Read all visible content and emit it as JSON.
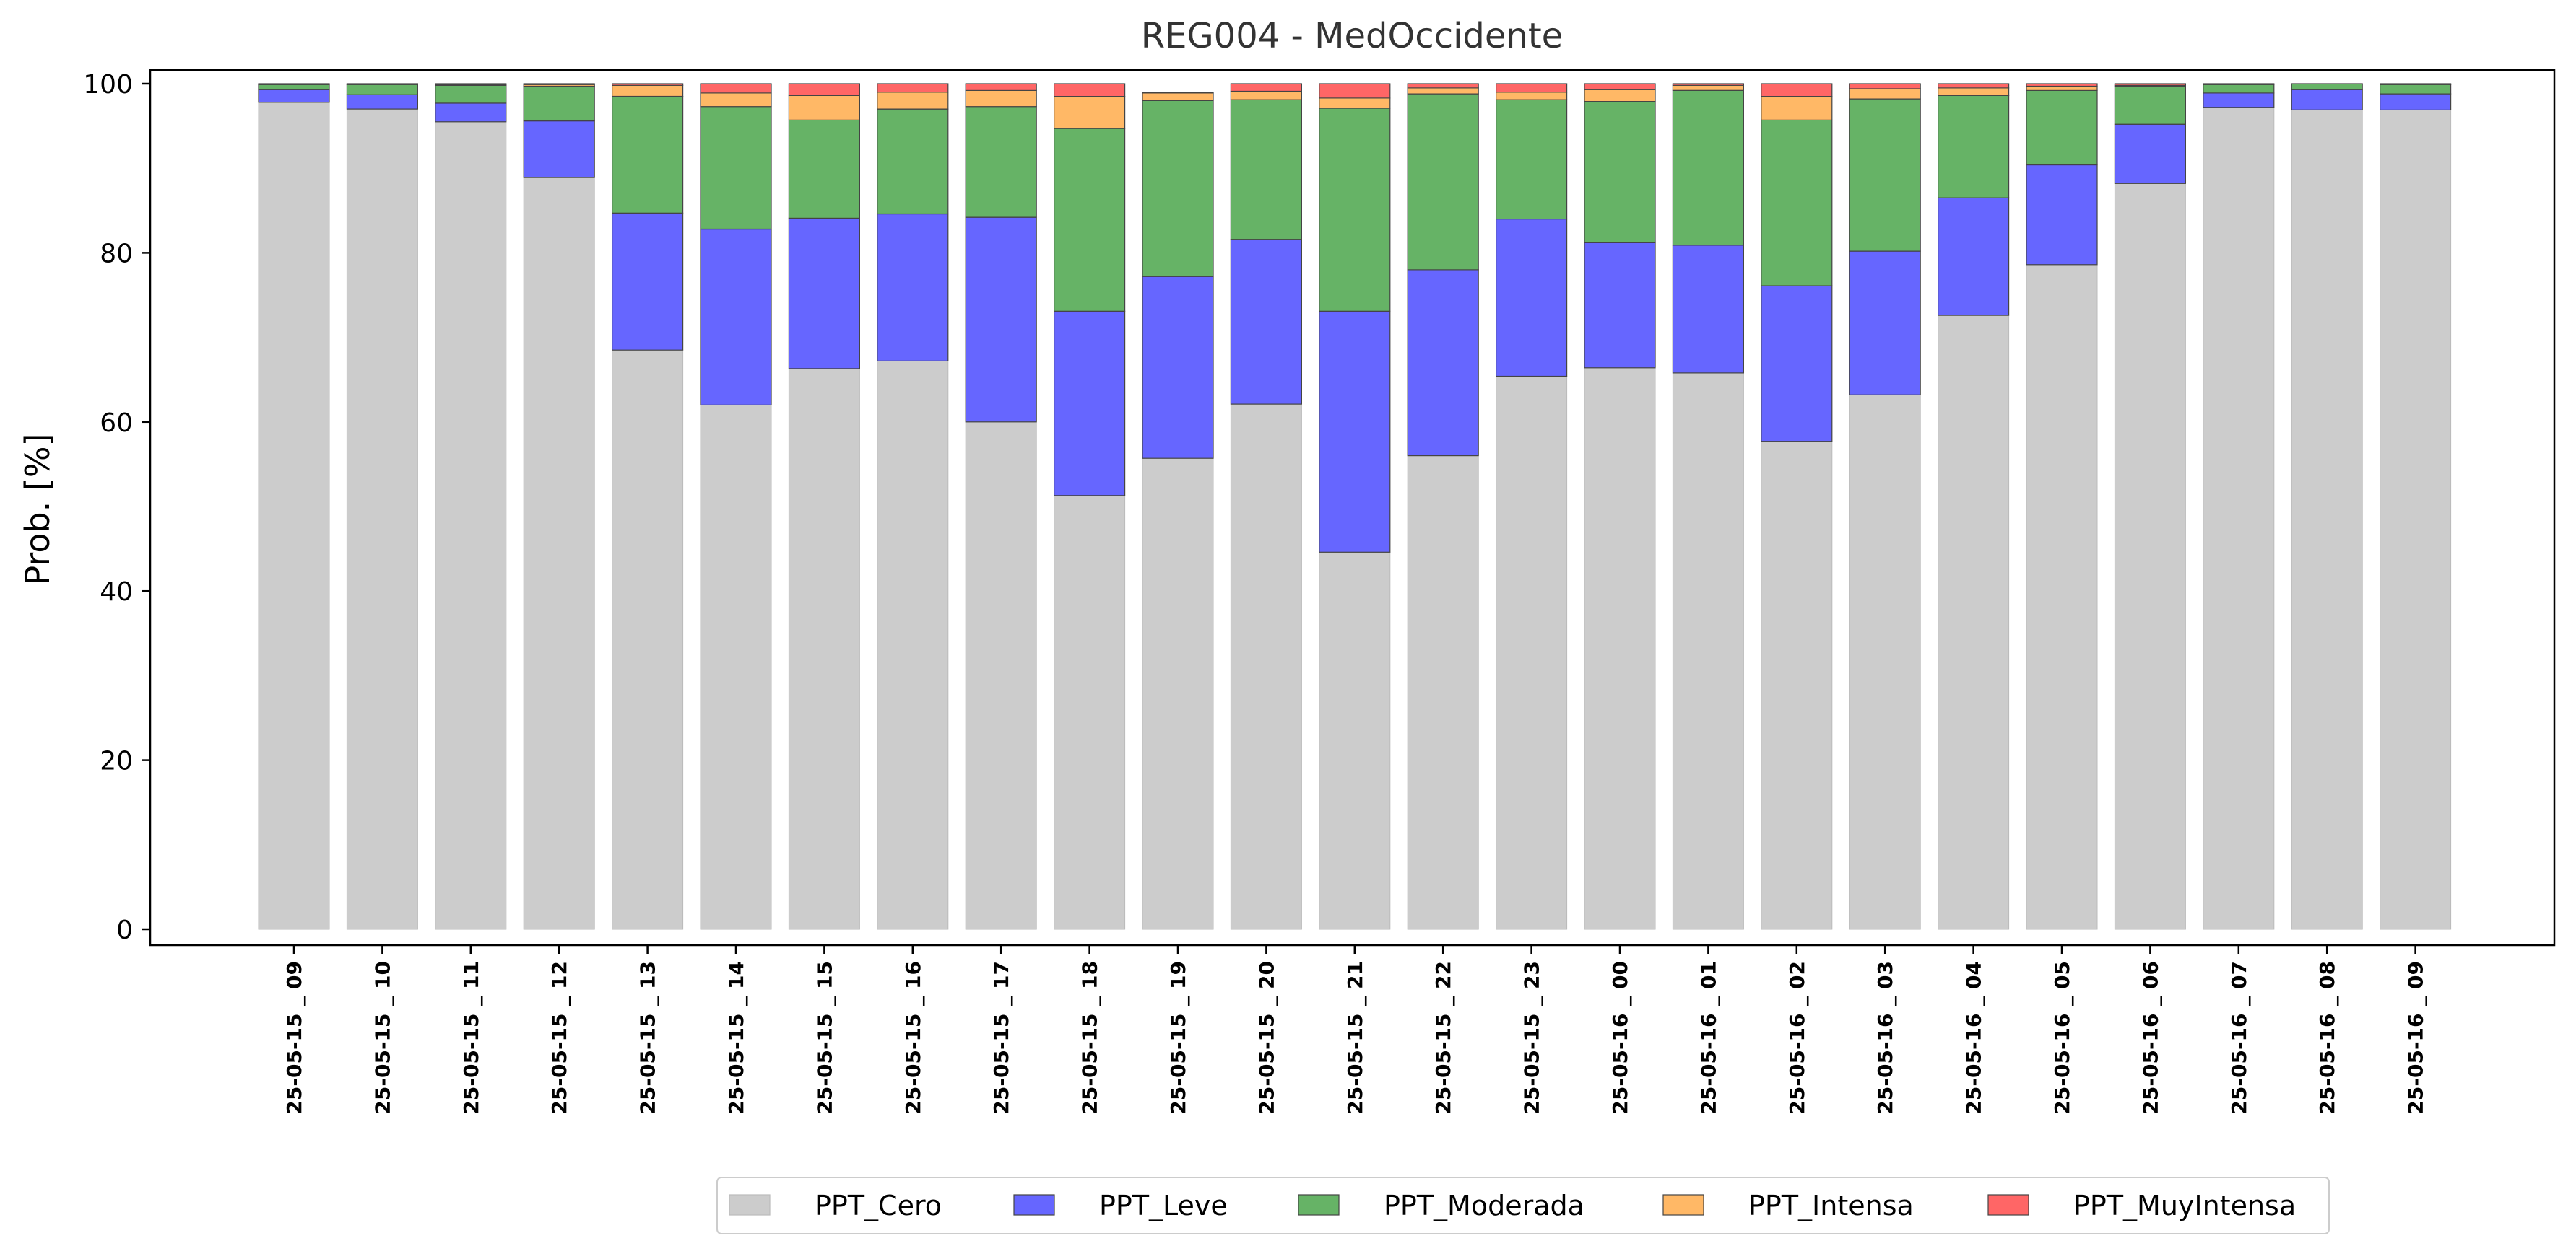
{
  "chart_data": {
    "type": "bar",
    "stacked": true,
    "title": "REG004 - MedOccidente",
    "xlabel": "",
    "ylabel": "Prob. [%]",
    "ylim": [
      0,
      102.5
    ],
    "yticks": [
      0,
      20,
      40,
      60,
      80,
      100
    ],
    "grid": false,
    "legend_position": "bottom-center",
    "categories": [
      "25-05-15 _ 09",
      "25-05-15 _ 10",
      "25-05-15 _ 11",
      "25-05-15 _ 12",
      "25-05-15 _ 13",
      "25-05-15 _ 14",
      "25-05-15 _ 15",
      "25-05-15 _ 16",
      "25-05-15 _ 17",
      "25-05-15 _ 18",
      "25-05-15 _ 19",
      "25-05-15 _ 20",
      "25-05-15 _ 21",
      "25-05-15 _ 22",
      "25-05-15 _ 23",
      "25-05-16 _ 00",
      "25-05-16 _ 01",
      "25-05-16 _ 02",
      "25-05-16 _ 03",
      "25-05-16 _ 04",
      "25-05-16 _ 05",
      "25-05-16 _ 06",
      "25-05-16 _ 07",
      "25-05-16 _ 08",
      "25-05-16 _ 09"
    ],
    "series": [
      {
        "name": "PPT_Cero",
        "color": "#cccccc",
        "values": [
          97.8,
          97.0,
          95.5,
          88.9,
          68.5,
          62.0,
          66.3,
          67.2,
          60.0,
          51.3,
          55.7,
          62.1,
          44.6,
          56.0,
          65.4,
          66.4,
          65.8,
          57.7,
          63.2,
          72.6,
          78.6,
          88.2,
          97.2,
          96.9,
          96.9
        ]
      },
      {
        "name": "PPT_Leve",
        "color": "#6666ff",
        "values": [
          1.5,
          1.7,
          2.2,
          6.7,
          16.2,
          20.8,
          17.8,
          17.4,
          24.2,
          21.8,
          21.5,
          19.5,
          28.5,
          22.0,
          18.6,
          14.8,
          15.1,
          18.4,
          17.0,
          13.9,
          11.8,
          7.0,
          1.7,
          2.4,
          1.9
        ]
      },
      {
        "name": "PPT_Moderada",
        "color": "#66b366",
        "values": [
          0.6,
          1.2,
          2.1,
          4.1,
          13.8,
          14.5,
          11.6,
          12.4,
          13.1,
          21.6,
          20.8,
          16.5,
          24.0,
          20.8,
          14.1,
          16.7,
          18.3,
          19.6,
          18.0,
          12.1,
          8.8,
          4.5,
          1.0,
          0.7,
          1.1
        ]
      },
      {
        "name": "PPT_Intensa",
        "color": "#ffb866",
        "values": [
          0.05,
          0.05,
          0.1,
          0.2,
          1.3,
          1.6,
          2.9,
          2.0,
          1.9,
          3.8,
          0.9,
          1.0,
          1.2,
          0.7,
          0.9,
          1.4,
          0.6,
          2.8,
          1.2,
          0.9,
          0.5,
          0.1,
          0.05,
          0.0,
          0.05
        ]
      },
      {
        "name": "PPT_MuyIntensa",
        "color": "#ff6666",
        "values": [
          0.05,
          0.05,
          0.1,
          0.1,
          0.2,
          1.1,
          1.4,
          1.0,
          0.8,
          1.5,
          0.1,
          0.9,
          1.7,
          0.5,
          1.0,
          0.7,
          0.2,
          1.5,
          0.6,
          0.5,
          0.3,
          0.2,
          0.05,
          0.0,
          0.05
        ]
      }
    ]
  }
}
